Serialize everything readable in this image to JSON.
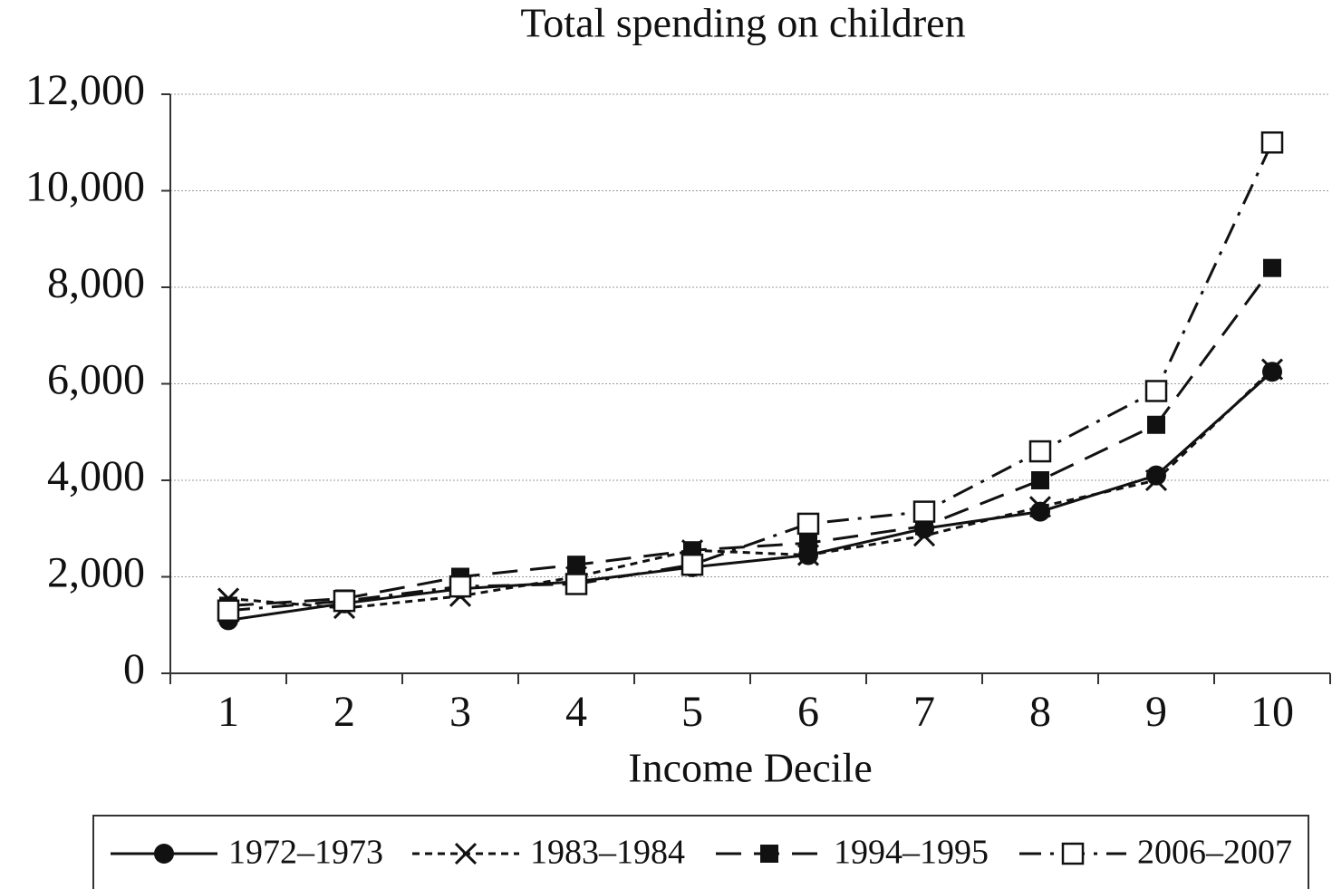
{
  "chart_data": {
    "type": "line",
    "title": "Total spending on children",
    "x_label": "Income Decile",
    "categories": [
      "1",
      "2",
      "3",
      "4",
      "5",
      "6",
      "7",
      "8",
      "9",
      "10"
    ],
    "series": [
      {
        "name": "1972–1973",
        "color": "#111111",
        "marker": "circle",
        "line_style": "solid",
        "values": [
          1100,
          1450,
          1750,
          1900,
          2200,
          2450,
          3000,
          3350,
          4100,
          6250
        ]
      },
      {
        "name": "1983–1984",
        "color": "#111111",
        "marker": "x",
        "line_style": "dotted",
        "values": [
          1550,
          1350,
          1600,
          2000,
          2550,
          2450,
          2850,
          3450,
          4000,
          6300
        ]
      },
      {
        "name": "1994–1995",
        "color": "#111111",
        "marker": "filled-square",
        "line_style": "dashed",
        "values": [
          1400,
          1550,
          2000,
          2250,
          2550,
          2700,
          3050,
          4000,
          5150,
          8400
        ]
      },
      {
        "name": "2006–2007",
        "color": "#111111",
        "marker": "open-square",
        "line_style": "dashdot",
        "values": [
          1300,
          1500,
          1800,
          1850,
          2250,
          3100,
          3350,
          4600,
          5850,
          11000
        ]
      }
    ],
    "ylim": [
      0,
      12000
    ],
    "yticks": [
      0,
      {
        "value": 2000,
        "label": "2,000"
      },
      {
        "value": 4000,
        "label": "4,000"
      },
      {
        "value": 6000,
        "label": "6,000"
      },
      {
        "value": 8000,
        "label": "8,000"
      },
      {
        "value": 10000,
        "label": "10,000"
      },
      {
        "value": 12000,
        "label": "12,000"
      }
    ],
    "grid": true,
    "legend": "bottom"
  }
}
